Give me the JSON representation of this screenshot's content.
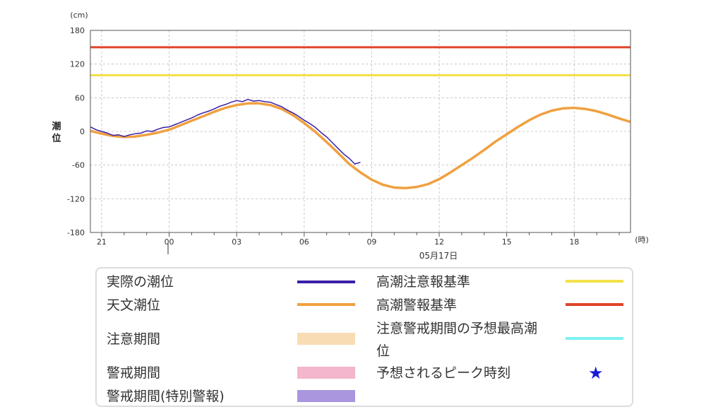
{
  "chart_data": {
    "type": "line",
    "y_unit": "(cm)",
    "x_unit": "(時)",
    "ylabel": "潮位",
    "ylim": [
      -180,
      180
    ],
    "yticks": [
      180,
      120,
      60,
      0,
      -60,
      -120,
      -180
    ],
    "xlim_hours": [
      -3.5,
      20.5
    ],
    "xticks": [
      {
        "h": -3,
        "label": "21"
      },
      {
        "h": 0,
        "label": "00"
      },
      {
        "h": 3,
        "label": "03"
      },
      {
        "h": 6,
        "label": "06"
      },
      {
        "h": 9,
        "label": "09"
      },
      {
        "h": 12,
        "label": "12"
      },
      {
        "h": 15,
        "label": "15"
      },
      {
        "h": 18,
        "label": "18"
      }
    ],
    "date_label": "05月17日",
    "grid": true,
    "thresholds": [
      {
        "name": "高潮警報基準",
        "value": 150,
        "color": "#e0442a"
      },
      {
        "name": "高潮注意報基準",
        "value": 100,
        "color": "#f2e14a"
      }
    ],
    "series": [
      {
        "name": "天文潮位",
        "color": "#f0a040",
        "x": [
          -3.5,
          -3,
          -2.5,
          -2,
          -1.5,
          -1,
          -0.5,
          0,
          0.5,
          1,
          1.5,
          2,
          2.5,
          3,
          3.5,
          4,
          4.5,
          5,
          5.5,
          6,
          6.5,
          7,
          7.5,
          8,
          8.5,
          9,
          9.5,
          10,
          10.5,
          11,
          11.5,
          12,
          12.5,
          13,
          13.5,
          14,
          14.5,
          15,
          15.5,
          16,
          16.5,
          17,
          17.5,
          18,
          18.5,
          19,
          19.5,
          20,
          20.5
        ],
        "values": [
          1,
          -4,
          -8,
          -10,
          -9,
          -6,
          -2,
          3,
          11,
          19,
          27,
          35,
          42,
          47,
          50,
          50,
          47,
          40,
          29,
          15,
          -1,
          -19,
          -38,
          -58,
          -73,
          -86,
          -95,
          -100,
          -101,
          -99,
          -94,
          -85,
          -73,
          -60,
          -47,
          -33,
          -18,
          -5,
          8,
          20,
          30,
          37,
          41,
          42,
          40,
          36,
          30,
          23,
          17
        ]
      },
      {
        "name": "実際の潮位",
        "color": "#3b1fa8",
        "x": [
          -3.5,
          -3.25,
          -3,
          -2.75,
          -2.5,
          -2.25,
          -2,
          -1.75,
          -1.5,
          -1.25,
          -1,
          -0.75,
          -0.5,
          -0.25,
          0,
          0.25,
          0.5,
          0.75,
          1,
          1.25,
          1.5,
          1.75,
          2,
          2.25,
          2.5,
          2.75,
          3,
          3.25,
          3.5,
          3.75,
          4,
          4.25,
          4.5,
          4.75,
          5,
          5.25,
          5.5,
          5.75,
          6,
          6.25,
          6.5,
          6.75,
          7,
          7.25,
          7.5,
          7.75,
          8,
          8.25,
          8.5
        ],
        "values": [
          8,
          3,
          0,
          -3,
          -7,
          -6,
          -9,
          -6,
          -4,
          -3,
          1,
          0,
          4,
          7,
          8,
          12,
          16,
          20,
          24,
          29,
          33,
          36,
          40,
          45,
          48,
          52,
          55,
          53,
          57,
          54,
          55,
          53,
          52,
          48,
          44,
          38,
          33,
          27,
          20,
          14,
          7,
          -2,
          -10,
          -20,
          -30,
          -40,
          -48,
          -58,
          -55
        ]
      }
    ]
  },
  "legend": {
    "items": [
      {
        "label": "実際の潮位",
        "color": "#3b1fa8",
        "kind": "line"
      },
      {
        "label": "天文潮位",
        "color": "#f0a040",
        "kind": "line"
      },
      {
        "label": "注意期間",
        "color": "#f8dcb4",
        "kind": "box"
      },
      {
        "label": "警戒期間",
        "color": "#f3b6cc",
        "kind": "box"
      },
      {
        "label": "警戒期間(特別警報)",
        "color": "#a996df",
        "kind": "box"
      },
      {
        "label": "高潮注意報基準",
        "color": "#f2e14a",
        "kind": "line"
      },
      {
        "label": "高潮警報基準",
        "color": "#e0442a",
        "kind": "line"
      },
      {
        "label": "注意警戒期間の予想最高潮",
        "label2": "位",
        "color": "#7ef0f0",
        "kind": "line"
      },
      {
        "label": "予想されるピーク時刻",
        "color": "#1a1adb",
        "kind": "star",
        "icon": "star-icon"
      }
    ]
  }
}
